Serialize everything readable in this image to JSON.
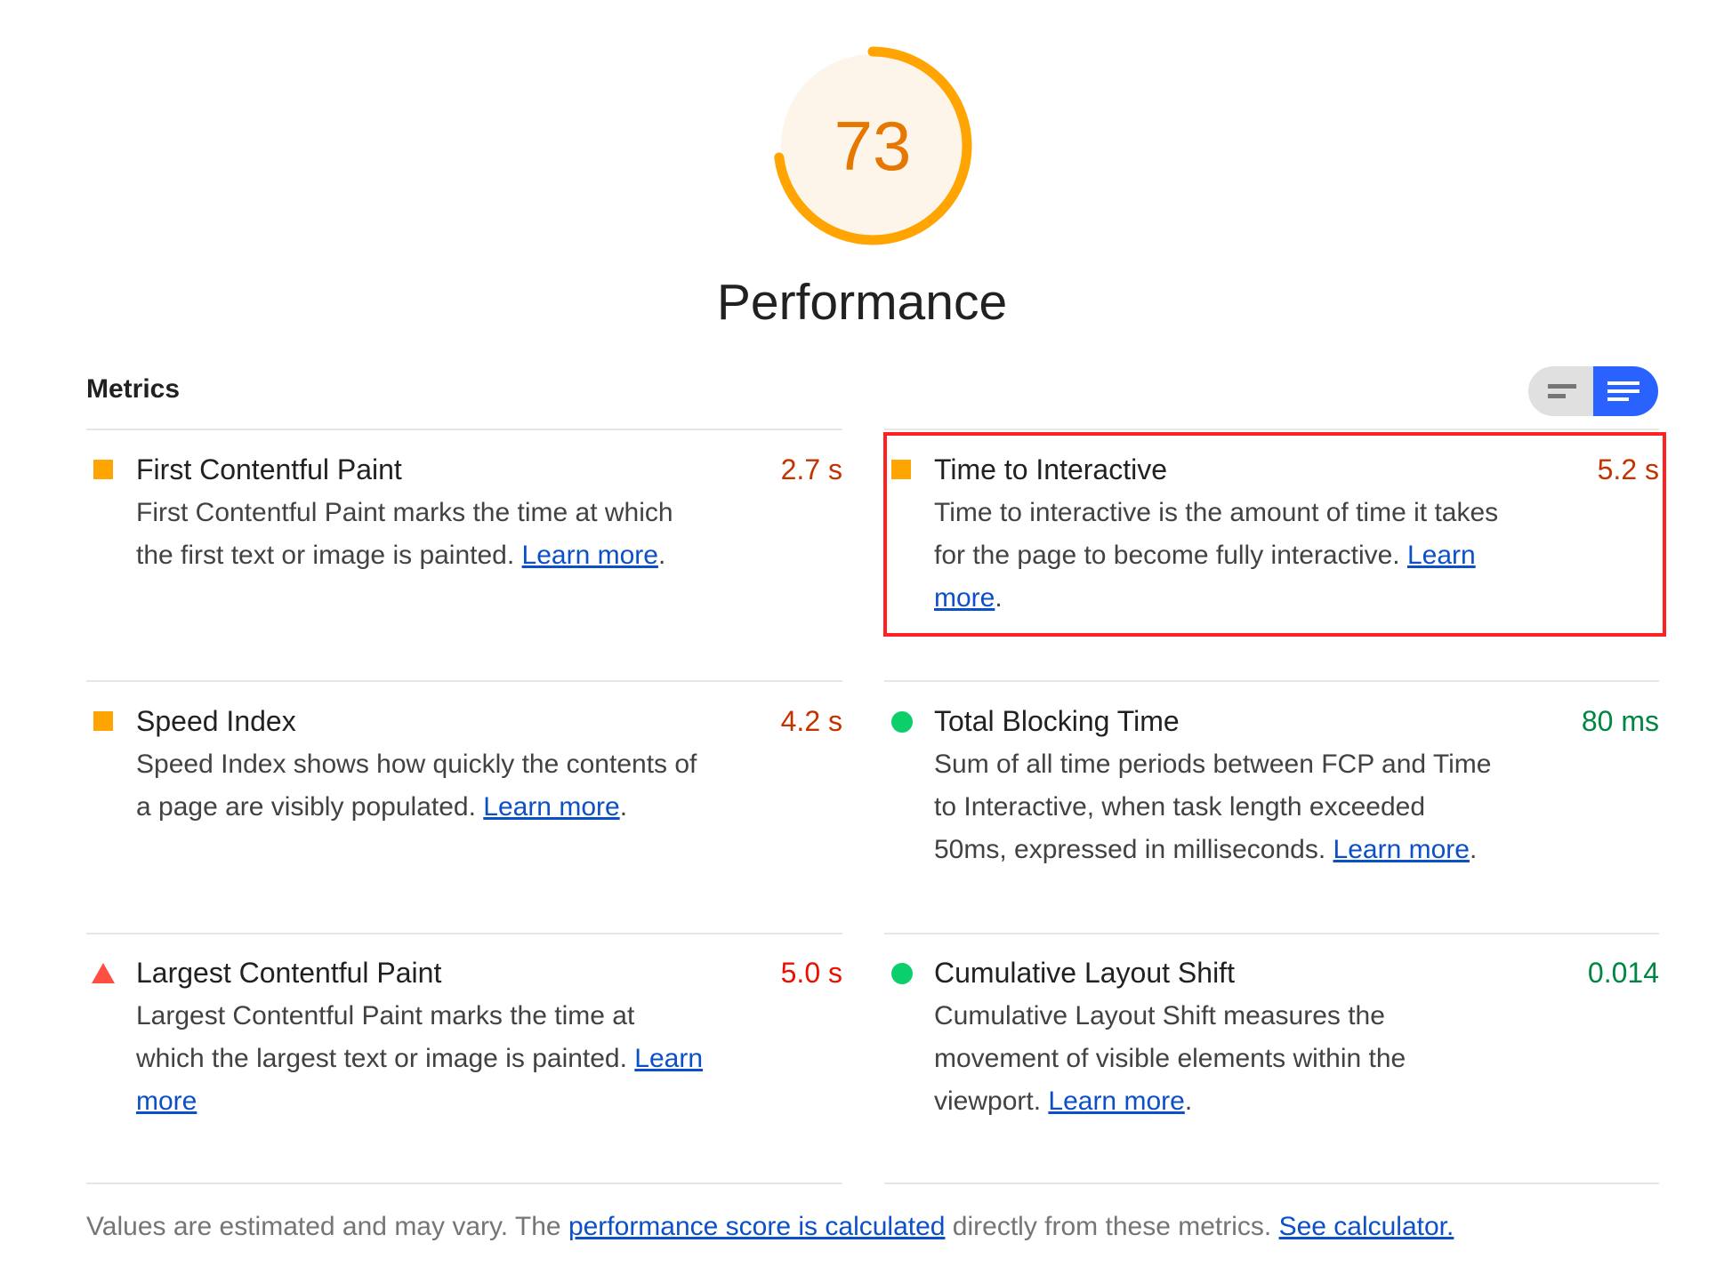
{
  "gauge": {
    "score": "73",
    "score_value": 73,
    "color": "#ffa400",
    "fill": "#fef5ea"
  },
  "category_title": "Performance",
  "metrics_header": "Metrics",
  "view_toggle": {
    "options": [
      "compact-view",
      "expanded-view"
    ],
    "selected": "expanded-view"
  },
  "metrics": [
    {
      "title": "First Contentful Paint",
      "value": "2.7 s",
      "rating": "average",
      "icon": "orange-square-icon",
      "desc": "First Contentful Paint marks the time at which the first text or image is painted. ",
      "link": "Learn more",
      "suffix": "."
    },
    {
      "title": "Time to Interactive",
      "value": "5.2 s",
      "rating": "average",
      "icon": "orange-square-icon",
      "desc": "Time to interactive is the amount of time it takes for the page to become fully interactive. ",
      "link": "Learn more",
      "suffix": "."
    },
    {
      "title": "Speed Index",
      "value": "4.2 s",
      "rating": "average",
      "icon": "orange-square-icon",
      "desc": "Speed Index shows how quickly the contents of a page are visibly populated. ",
      "link": "Learn more",
      "suffix": "."
    },
    {
      "title": "Total Blocking Time",
      "value": "80 ms",
      "rating": "pass",
      "icon": "green-circle-icon",
      "desc": "Sum of all time periods between FCP and Time to Interactive, when task length exceeded 50ms, expressed in milliseconds. ",
      "link": "Learn more",
      "suffix": "."
    },
    {
      "title": "Largest Contentful Paint",
      "value": "5.0 s",
      "rating": "fail",
      "icon": "red-triangle-icon",
      "desc": "Largest Contentful Paint marks the time at which the largest text or image is painted. ",
      "link": "Learn more",
      "suffix": ""
    },
    {
      "title": "Cumulative Layout Shift",
      "value": "0.014",
      "rating": "pass",
      "icon": "green-circle-icon",
      "desc": "Cumulative Layout Shift measures the movement of visible elements within the viewport. ",
      "link": "Learn more",
      "suffix": "."
    }
  ],
  "colors": {
    "average": "#ffa400",
    "pass": "#0cce6b",
    "fail": "#ff4e42",
    "highlight": "#ff2222",
    "toggle_active": "#2962ff"
  },
  "footer": {
    "text1": "Values are estimated and may vary. The ",
    "link1": "performance score is calculated",
    "text2": " directly from these metrics. ",
    "link2": "See calculator."
  }
}
